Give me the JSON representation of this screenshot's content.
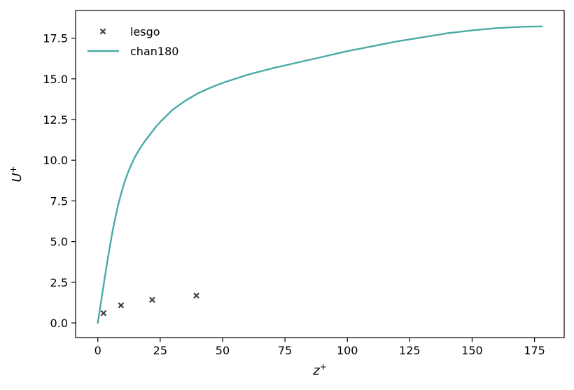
{
  "chart_data": {
    "type": "line",
    "title": "",
    "xlabel": "z",
    "xlabel_sup": "+",
    "ylabel": "U",
    "ylabel_sup": "+",
    "xlim": [
      -8.9,
      186.9
    ],
    "ylim": [
      -0.9,
      19.2
    ],
    "xticks": [
      0,
      25,
      50,
      75,
      100,
      125,
      150,
      175
    ],
    "xtick_labels": [
      "0",
      "25",
      "50",
      "75",
      "100",
      "125",
      "150",
      "175"
    ],
    "yticks": [
      0.0,
      2.5,
      5.0,
      7.5,
      10.0,
      12.5,
      15.0,
      17.5
    ],
    "ytick_labels": [
      "0.0",
      "2.5",
      "5.0",
      "7.5",
      "10.0",
      "12.5",
      "15.0",
      "17.5"
    ],
    "grid": false,
    "legend_position": "upper-left",
    "series": [
      {
        "name": "lesgo",
        "kind": "scatter",
        "marker": "x",
        "color": "#404040",
        "x": [
          2.3,
          9.3,
          21.8,
          39.5
        ],
        "y": [
          0.6,
          1.08,
          1.42,
          1.68
        ]
      },
      {
        "name": "chan180",
        "kind": "line",
        "color": "#4aaaa6",
        "x": [
          0,
          1,
          2,
          3,
          4,
          5,
          6,
          7,
          8,
          9,
          10,
          11,
          12,
          13,
          14,
          15,
          17,
          19,
          21,
          23,
          25,
          30,
          35,
          40,
          45,
          50,
          60,
          70,
          80,
          90,
          100,
          110,
          120,
          130,
          140,
          150,
          160,
          170,
          178
        ],
        "y": [
          0,
          1.0,
          2.0,
          3.0,
          3.95,
          4.85,
          5.7,
          6.45,
          7.15,
          7.75,
          8.3,
          8.78,
          9.2,
          9.58,
          9.92,
          10.23,
          10.75,
          11.2,
          11.6,
          12.0,
          12.35,
          13.1,
          13.65,
          14.1,
          14.45,
          14.75,
          15.25,
          15.65,
          16.0,
          16.35,
          16.7,
          17.0,
          17.3,
          17.55,
          17.8,
          17.98,
          18.12,
          18.2,
          18.22
        ]
      }
    ]
  }
}
